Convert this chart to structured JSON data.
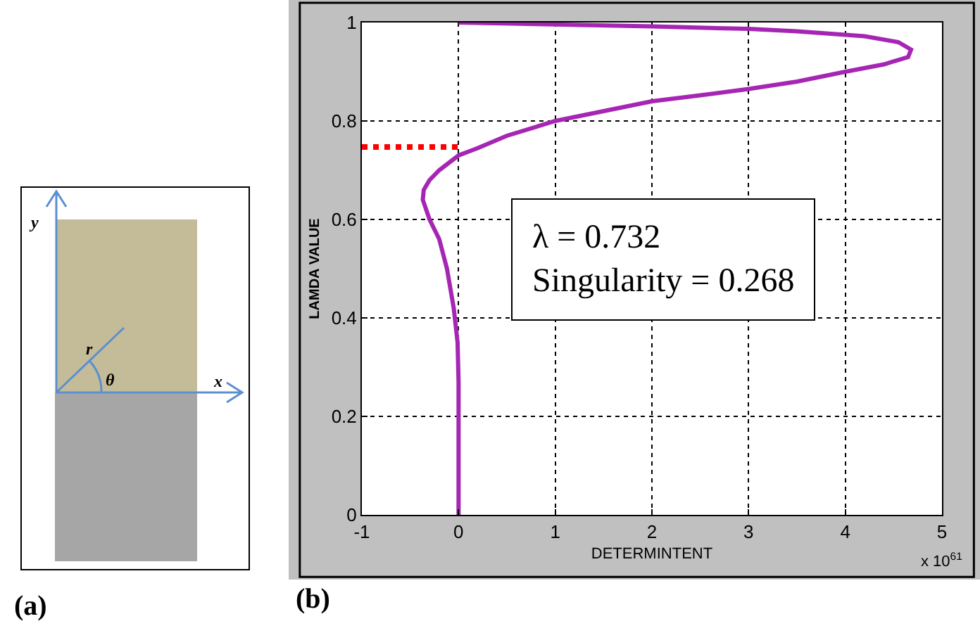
{
  "chart_data": [
    {
      "type": "other",
      "annotations": [
        "(a)",
        "y",
        "x",
        "r",
        "θ"
      ]
    },
    {
      "type": "line",
      "xlabel": "DETERMINTENT",
      "ylabel": "LAMDA VALUE",
      "annotations": [
        "λ = 0.732",
        "Singularity = 0.268",
        "x 10$^{61}$",
        "(b)"
      ],
      "xlim": [
        -1,
        5
      ],
      "xticks": [
        -1,
        0,
        1,
        2,
        3,
        4,
        5
      ],
      "ylim": [
        0,
        1
      ],
      "yticks": [
        0,
        0.2,
        0.4,
        0.6,
        0.8,
        1
      ],
      "grid": true,
      "legend": false,
      "marker": "none",
      "series": [
        {
          "color": "#a626b4",
          "line_style": "solid",
          "x": [
            0,
            0,
            -0.01,
            -0.05,
            -0.12,
            -0.2,
            -0.3,
            -0.37,
            -0.36,
            -0.3,
            -0.2,
            -0.1,
            0,
            0.2,
            0.5,
            1,
            1.5,
            2,
            2.5,
            3,
            3.5,
            4,
            4.4,
            4.65,
            4.68,
            4.55,
            4.2,
            3.5,
            3,
            2,
            1,
            0
          ],
          "values": [
            0,
            0.27,
            0.35,
            0.42,
            0.5,
            0.56,
            0.6,
            0.64,
            0.66,
            0.68,
            0.7,
            0.715,
            0.73,
            0.745,
            0.77,
            0.8,
            0.82,
            0.84,
            0.852,
            0.865,
            0.88,
            0.9,
            0.915,
            0.93,
            0.945,
            0.96,
            0.972,
            0.982,
            0.987,
            0.992,
            0.996,
            1
          ]
        },
        {
          "color": "#ff0000",
          "line_style": "dotted",
          "x": [
            -1,
            0
          ],
          "values": [
            0.747,
            0.747
          ]
        }
      ]
    }
  ]
}
